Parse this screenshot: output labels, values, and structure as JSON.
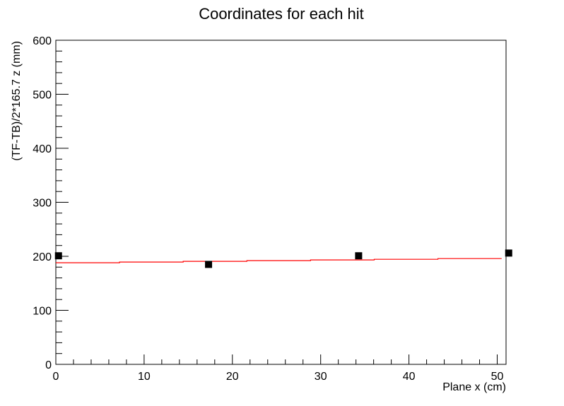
{
  "chart_data": {
    "type": "scatter",
    "title": "Coordinates for each hit",
    "xlabel": "Plane x (cm)",
    "ylabel": "(TF-TB)/2*165.7  z (mm)",
    "xlim": [
      0,
      51
    ],
    "ylim": [
      0,
      600
    ],
    "x_ticks": [
      0,
      10,
      20,
      30,
      40,
      50
    ],
    "y_ticks": [
      0,
      100,
      200,
      300,
      400,
      500,
      600
    ],
    "grid": false,
    "series": [
      {
        "kind": "points",
        "marker": "square",
        "color": "#000000",
        "points": [
          {
            "x": 0.3,
            "y": 201
          },
          {
            "x": 17.3,
            "y": 185
          },
          {
            "x": 34.3,
            "y": 201
          },
          {
            "x": 51.3,
            "y": 206
          }
        ]
      },
      {
        "kind": "fit-line",
        "color": "#ff0000",
        "x_start": 0,
        "x_end": 50.5,
        "y_start": 187.5,
        "y_end": 196.5
      }
    ]
  }
}
